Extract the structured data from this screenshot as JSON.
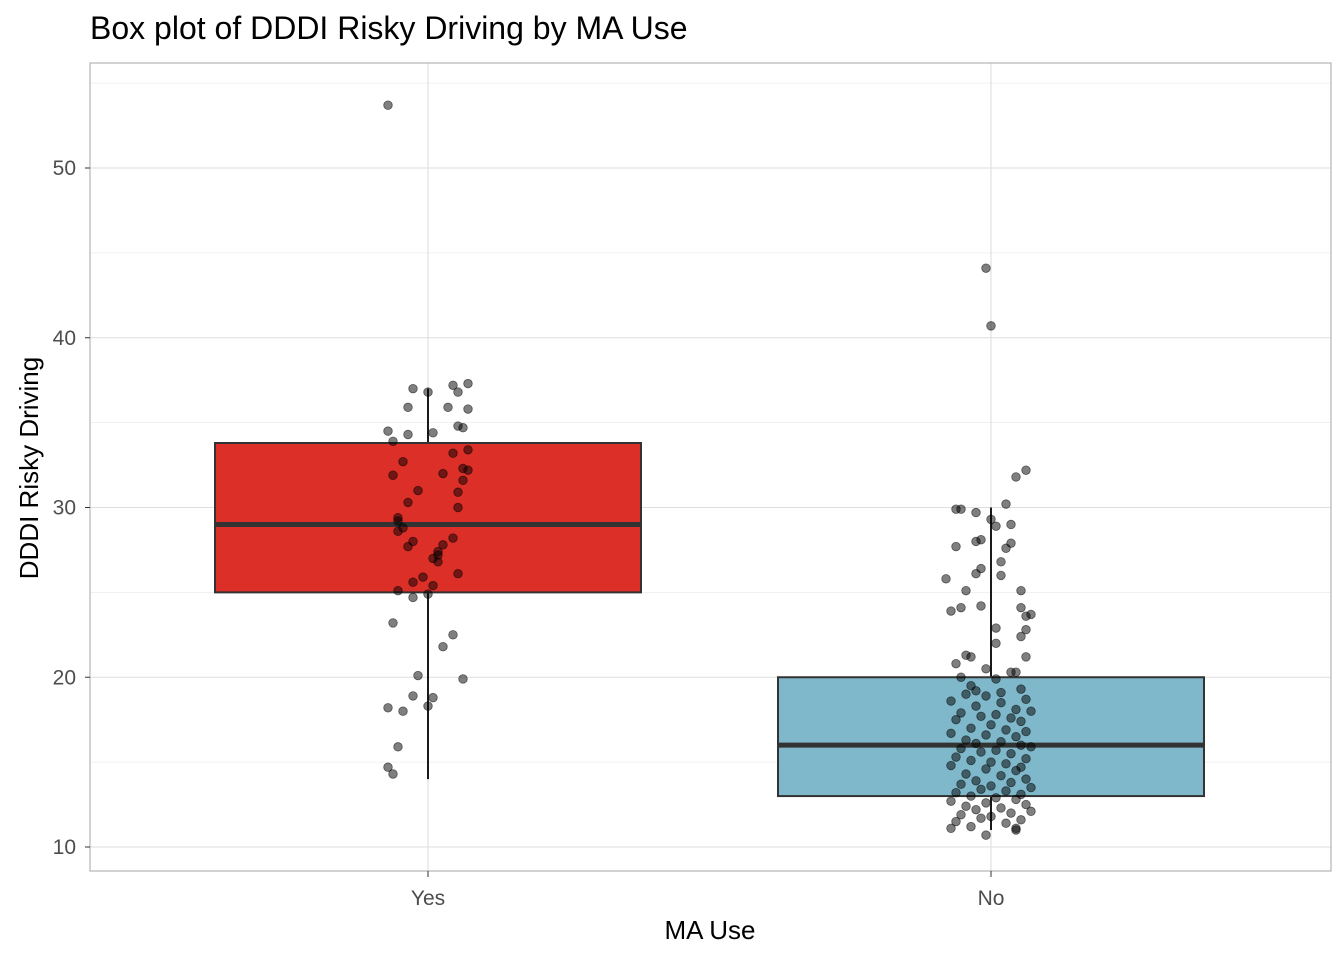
{
  "chart_data": {
    "type": "boxplot",
    "title": "Box plot of DDDI Risky Driving by MA Use",
    "xlabel": "MA Use",
    "ylabel": "DDDI Risky Driving",
    "ylim": [
      8.5,
      55.5
    ],
    "yticks": [
      10,
      20,
      30,
      40,
      50
    ],
    "grid": true,
    "legend": "none",
    "categories": [
      "Yes",
      "No"
    ],
    "boxes": [
      {
        "category": "Yes",
        "fill": "#dc2f28",
        "whisker_low": 14,
        "q1": 25,
        "median": 29,
        "q3": 33.8,
        "whisker_high": 37,
        "outliers": [
          53.7
        ],
        "points": [
          [
            -0.08,
            53.7
          ],
          [
            0.08,
            37.3
          ],
          [
            0.05,
            37.2
          ],
          [
            -0.03,
            37
          ],
          [
            0.0,
            36.8
          ],
          [
            0.06,
            36.8
          ],
          [
            -0.04,
            35.9
          ],
          [
            0.04,
            35.9
          ],
          [
            0.08,
            35.8
          ],
          [
            0.06,
            34.8
          ],
          [
            0.07,
            34.7
          ],
          [
            -0.08,
            34.5
          ],
          [
            0.01,
            34.4
          ],
          [
            -0.04,
            34.3
          ],
          [
            -0.07,
            33.9
          ],
          [
            0.08,
            33.4
          ],
          [
            0.05,
            33.2
          ],
          [
            -0.05,
            32.7
          ],
          [
            0.07,
            32.3
          ],
          [
            0.08,
            32.2
          ],
          [
            0.03,
            32.0
          ],
          [
            -0.07,
            31.9
          ],
          [
            0.07,
            31.6
          ],
          [
            -0.02,
            31.0
          ],
          [
            0.06,
            30.9
          ],
          [
            -0.04,
            30.3
          ],
          [
            0.06,
            30.0
          ],
          [
            -0.06,
            29.4
          ],
          [
            -0.06,
            29.2
          ],
          [
            -0.05,
            28.8
          ],
          [
            -0.06,
            28.6
          ],
          [
            0.05,
            28.2
          ],
          [
            -0.03,
            28.0
          ],
          [
            0.03,
            27.8
          ],
          [
            -0.04,
            27.7
          ],
          [
            0.02,
            27.4
          ],
          [
            0.02,
            27.2
          ],
          [
            0.01,
            27.0
          ],
          [
            0.02,
            26.8
          ],
          [
            0.06,
            26.1
          ],
          [
            -0.01,
            25.9
          ],
          [
            -0.03,
            25.6
          ],
          [
            0.01,
            25.4
          ],
          [
            -0.06,
            25.1
          ],
          [
            0.0,
            24.9
          ],
          [
            -0.03,
            24.7
          ],
          [
            -0.07,
            23.2
          ],
          [
            0.05,
            22.5
          ],
          [
            0.03,
            21.8
          ],
          [
            -0.02,
            20.1
          ],
          [
            0.07,
            19.9
          ],
          [
            -0.03,
            18.9
          ],
          [
            0.01,
            18.8
          ],
          [
            0.0,
            18.3
          ],
          [
            -0.08,
            18.2
          ],
          [
            -0.05,
            18.0
          ],
          [
            -0.06,
            15.9
          ],
          [
            -0.08,
            14.7
          ],
          [
            -0.07,
            14.3
          ]
        ]
      },
      {
        "category": "No",
        "fill": "#80b8cb",
        "whisker_low": 11,
        "q1": 13,
        "median": 16,
        "q3": 20,
        "whisker_high": 30,
        "outliers": [
          44.1,
          40.7,
          32.2,
          31.8
        ],
        "points": [
          [
            -0.01,
            44.1
          ],
          [
            0.0,
            40.7
          ],
          [
            0.07,
            32.2
          ],
          [
            0.05,
            31.8
          ],
          [
            0.03,
            30.2
          ],
          [
            -0.07,
            29.9
          ],
          [
            -0.06,
            29.9
          ],
          [
            -0.03,
            29.7
          ],
          [
            0.0,
            29.3
          ],
          [
            0.01,
            28.9
          ],
          [
            0.04,
            29.0
          ],
          [
            -0.03,
            28.0
          ],
          [
            -0.02,
            28.1
          ],
          [
            0.04,
            27.9
          ],
          [
            -0.07,
            27.7
          ],
          [
            0.03,
            27.6
          ],
          [
            0.02,
            26.8
          ],
          [
            -0.02,
            26.4
          ],
          [
            -0.03,
            26.1
          ],
          [
            0.02,
            26.0
          ],
          [
            -0.09,
            25.8
          ],
          [
            -0.05,
            25.1
          ],
          [
            0.06,
            25.1
          ],
          [
            -0.06,
            24.1
          ],
          [
            -0.02,
            24.2
          ],
          [
            0.06,
            24.1
          ],
          [
            -0.08,
            23.9
          ],
          [
            0.07,
            23.6
          ],
          [
            0.08,
            23.7
          ],
          [
            0.01,
            22.9
          ],
          [
            0.07,
            22.8
          ],
          [
            0.06,
            22.4
          ],
          [
            0.01,
            22.0
          ],
          [
            0.07,
            21.2
          ],
          [
            -0.05,
            21.3
          ],
          [
            -0.04,
            21.2
          ],
          [
            -0.07,
            20.8
          ],
          [
            0.04,
            20.3
          ],
          [
            -0.01,
            20.5
          ],
          [
            0.05,
            20.3
          ],
          [
            -0.06,
            20.0
          ],
          [
            0.01,
            19.9
          ],
          [
            -0.04,
            19.5
          ],
          [
            0.06,
            19.3
          ],
          [
            -0.03,
            19.2
          ],
          [
            0.02,
            19.1
          ],
          [
            -0.05,
            19.0
          ],
          [
            -0.01,
            18.9
          ],
          [
            0.07,
            18.7
          ],
          [
            -0.08,
            18.6
          ],
          [
            0.02,
            18.5
          ],
          [
            -0.03,
            18.3
          ],
          [
            0.05,
            18.1
          ],
          [
            0.08,
            18.0
          ],
          [
            -0.06,
            17.9
          ],
          [
            0.01,
            17.8
          ],
          [
            -0.02,
            17.7
          ],
          [
            0.04,
            17.6
          ],
          [
            -0.07,
            17.5
          ],
          [
            0.06,
            17.4
          ],
          [
            0.0,
            17.2
          ],
          [
            -0.04,
            17.0
          ],
          [
            0.03,
            16.9
          ],
          [
            0.07,
            16.8
          ],
          [
            -0.08,
            16.7
          ],
          [
            -0.01,
            16.6
          ],
          [
            0.05,
            16.5
          ],
          [
            -0.05,
            16.3
          ],
          [
            0.02,
            16.2
          ],
          [
            -0.03,
            16.1
          ],
          [
            0.06,
            16.0
          ],
          [
            0.08,
            15.9
          ],
          [
            -0.06,
            15.8
          ],
          [
            0.01,
            15.7
          ],
          [
            -0.02,
            15.6
          ],
          [
            0.04,
            15.5
          ],
          [
            -0.07,
            15.3
          ],
          [
            0.07,
            15.2
          ],
          [
            -0.04,
            15.1
          ],
          [
            0.0,
            15.0
          ],
          [
            0.03,
            14.9
          ],
          [
            -0.08,
            14.8
          ],
          [
            0.06,
            14.7
          ],
          [
            -0.01,
            14.6
          ],
          [
            0.05,
            14.5
          ],
          [
            -0.05,
            14.3
          ],
          [
            0.02,
            14.2
          ],
          [
            0.07,
            14.0
          ],
          [
            -0.03,
            13.9
          ],
          [
            0.04,
            13.8
          ],
          [
            -0.06,
            13.7
          ],
          [
            0.0,
            13.6
          ],
          [
            0.08,
            13.5
          ],
          [
            -0.02,
            13.4
          ],
          [
            0.03,
            13.3
          ],
          [
            -0.07,
            13.2
          ],
          [
            0.06,
            13.1
          ],
          [
            -0.04,
            13.0
          ],
          [
            0.01,
            12.9
          ],
          [
            0.05,
            12.8
          ],
          [
            -0.08,
            12.7
          ],
          [
            -0.01,
            12.6
          ],
          [
            0.07,
            12.5
          ],
          [
            -0.05,
            12.4
          ],
          [
            0.02,
            12.3
          ],
          [
            -0.03,
            12.2
          ],
          [
            0.08,
            12.1
          ],
          [
            0.04,
            12.0
          ],
          [
            -0.06,
            11.9
          ],
          [
            0.0,
            11.8
          ],
          [
            -0.02,
            11.7
          ],
          [
            0.06,
            11.6
          ],
          [
            -0.07,
            11.5
          ],
          [
            0.03,
            11.4
          ],
          [
            -0.04,
            11.2
          ],
          [
            0.05,
            11.1
          ],
          [
            -0.08,
            11.1
          ],
          [
            0.05,
            11.0
          ],
          [
            -0.01,
            10.7
          ]
        ]
      }
    ]
  }
}
